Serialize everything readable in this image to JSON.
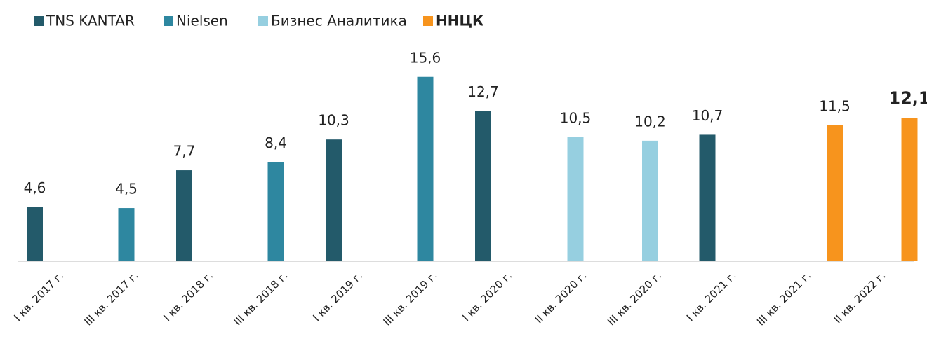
{
  "chart_data": {
    "type": "bar",
    "categories": [
      "I кв. 2017 г.",
      "III кв. 2017 г.",
      "I кв. 2018 г.",
      "III кв. 2018 г.",
      "I кв. 2019 г.",
      "III кв. 2019 г.",
      "I кв. 2020 г.",
      "II кв. 2020 г.",
      "III кв. 2020 г.",
      "I кв. 2021 г.",
      "III кв. 2021 г.",
      "II кв. 2022 г."
    ],
    "series": [
      {
        "name": "TNS KANTAR",
        "color": "#235a6a",
        "values": [
          4.6,
          null,
          7.7,
          null,
          10.3,
          null,
          12.7,
          null,
          null,
          10.7,
          null,
          null
        ],
        "value_labels": [
          "4,6",
          null,
          "7,7",
          null,
          "10,3",
          null,
          "12,7",
          null,
          null,
          "10,7",
          null,
          null
        ]
      },
      {
        "name": "Nielsen",
        "color": "#2e87a0",
        "values": [
          null,
          4.5,
          null,
          8.4,
          null,
          15.6,
          null,
          null,
          null,
          null,
          null,
          null
        ],
        "value_labels": [
          null,
          "4,5",
          null,
          "8,4",
          null,
          "15,6",
          null,
          null,
          null,
          null,
          null,
          null
        ]
      },
      {
        "name": "Бизнес Аналитика",
        "color": "#96cfe0",
        "values": [
          null,
          null,
          null,
          null,
          null,
          null,
          null,
          10.5,
          10.2,
          null,
          null,
          null
        ],
        "value_labels": [
          null,
          null,
          null,
          null,
          null,
          null,
          null,
          "10,5",
          "10,2",
          null,
          null,
          null
        ]
      },
      {
        "name": "ННЦК",
        "color": "#f7941d",
        "values": [
          null,
          null,
          null,
          null,
          null,
          null,
          null,
          null,
          null,
          null,
          11.5,
          12.1
        ],
        "value_labels": [
          null,
          null,
          null,
          null,
          null,
          null,
          null,
          null,
          null,
          null,
          "11,5",
          "12,1"
        ]
      }
    ],
    "ylim": [
      0,
      16
    ],
    "legend": "top-left"
  }
}
